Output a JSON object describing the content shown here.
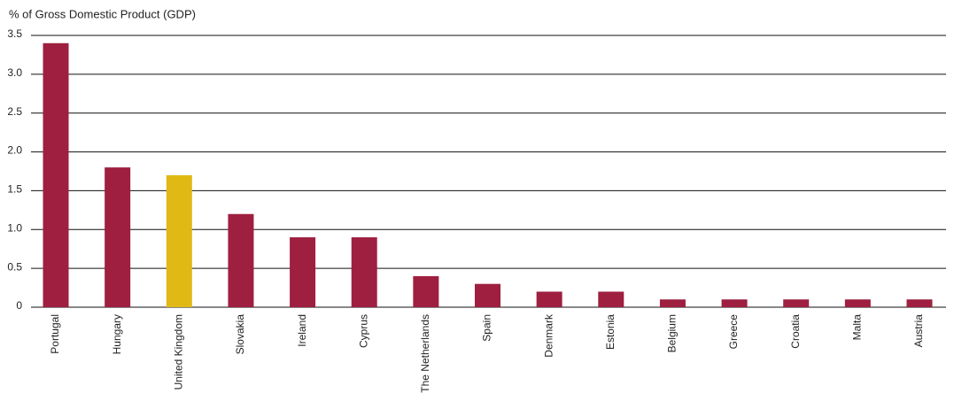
{
  "chart_data": {
    "type": "bar",
    "title": "% of Gross Domestic Product (GDP)",
    "categories": [
      "Portugal",
      "Hungary",
      "United Kingdom",
      "Slovakia",
      "Ireland",
      "Cyprus",
      "The Netherlands",
      "Spain",
      "Denmark",
      "Estonia",
      "Belgium",
      "Greece",
      "Croatia",
      "Malta",
      "Austria"
    ],
    "values": [
      3.4,
      1.8,
      1.7,
      1.2,
      0.9,
      0.9,
      0.4,
      0.3,
      0.2,
      0.2,
      0.1,
      0.1,
      0.1,
      0.1,
      0.1
    ],
    "colors": [
      "#9e1f3f",
      "#9e1f3f",
      "#e0b914",
      "#9e1f3f",
      "#9e1f3f",
      "#9e1f3f",
      "#9e1f3f",
      "#9e1f3f",
      "#9e1f3f",
      "#9e1f3f",
      "#9e1f3f",
      "#9e1f3f",
      "#9e1f3f",
      "#9e1f3f",
      "#9e1f3f"
    ],
    "ylim": [
      0,
      3.5
    ],
    "yticks": [
      0,
      0.5,
      {
        "value": 1,
        "label": "1.0"
      },
      1.5,
      {
        "value": 2,
        "label": "2.0"
      },
      2.5,
      {
        "value": 3,
        "label": "3.0"
      },
      3.5
    ],
    "grid": true
  }
}
